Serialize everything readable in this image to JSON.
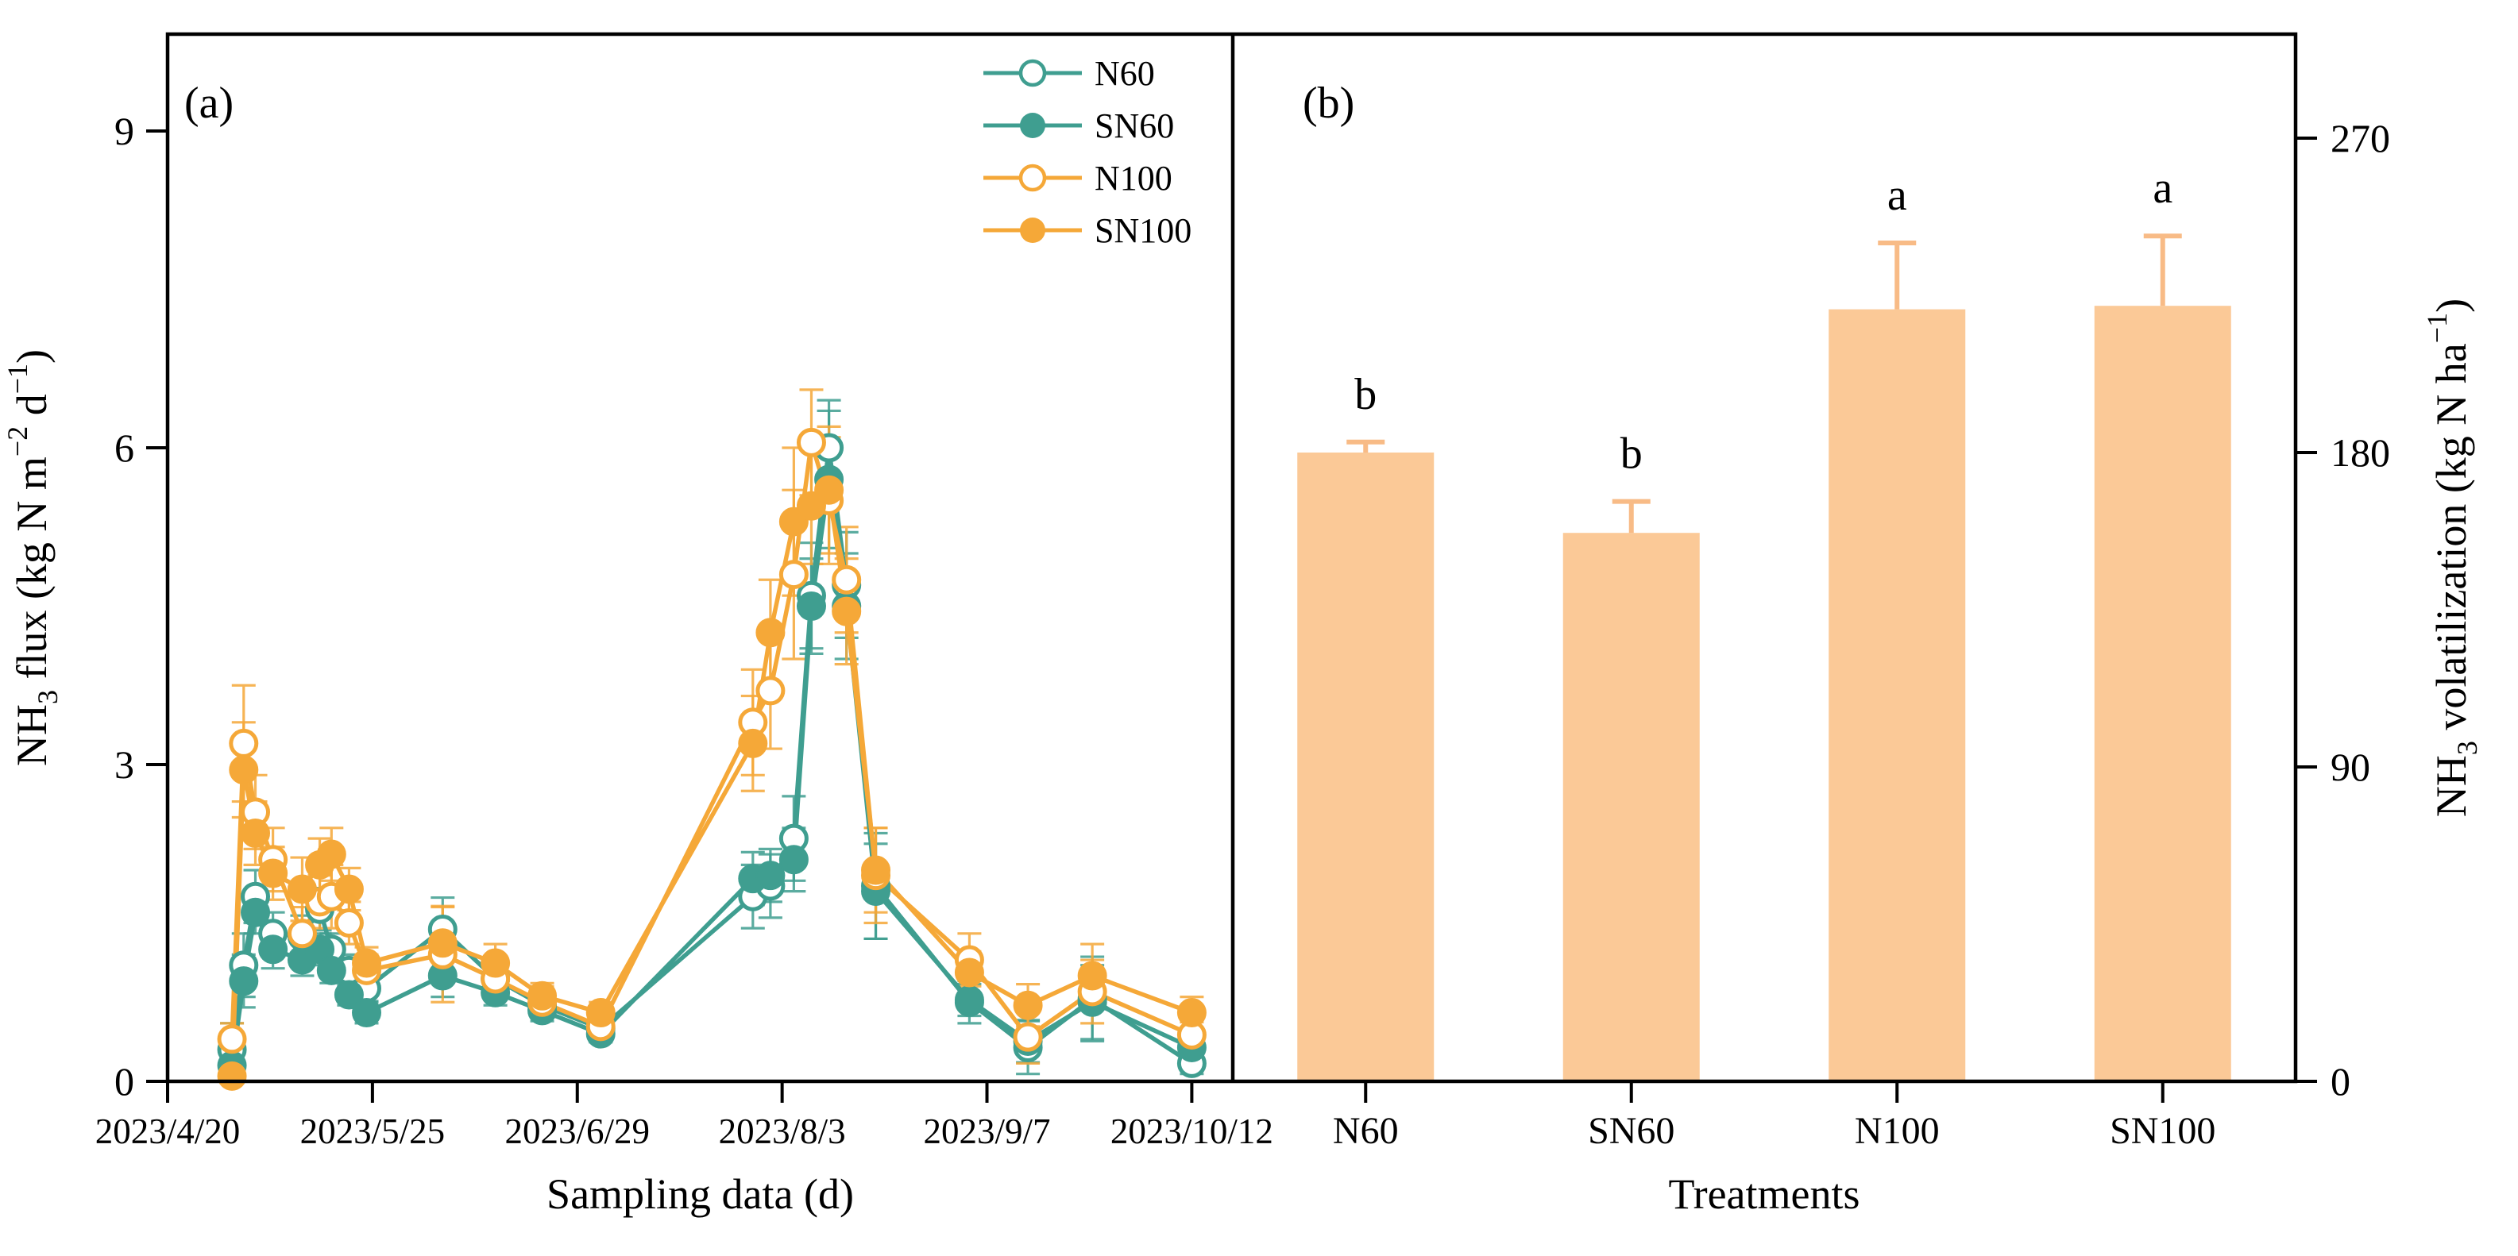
{
  "figure": {
    "background": "#ffffff",
    "colors": {
      "teal": "#3F9E90",
      "orange": "#F5A838",
      "bar_fill": "#FBC997",
      "bar_error": "#F8BB86",
      "axis": "#000000",
      "open_marker_fill": "#FFFFFF"
    },
    "panel_a_label": "(a)",
    "panel_b_label": "(b)"
  },
  "chart_data": [
    {
      "type": "line",
      "panel": "a",
      "panel_label": "(a)",
      "xlabel": "Sampling data (d)",
      "ylabel_parts": [
        [
          "t",
          "NH"
        ],
        [
          "sub",
          "3"
        ],
        [
          "t",
          " flux (kg N m"
        ],
        [
          "sup",
          "−2"
        ],
        [
          "t",
          " d"
        ],
        [
          "sup",
          "−1"
        ],
        [
          "t",
          ")"
        ]
      ],
      "x_ticks": [
        {
          "day": 0,
          "label": "2023/4/20"
        },
        {
          "day": 35,
          "label": "2023/5/25"
        },
        {
          "day": 70,
          "label": "2023/6/29"
        },
        {
          "day": 105,
          "label": "2023/8/3"
        },
        {
          "day": 140,
          "label": "2023/9/7"
        },
        {
          "day": 175,
          "label": "2023/10/12"
        }
      ],
      "x_range_days": [
        0,
        182
      ],
      "ylim": [
        0,
        9.9
      ],
      "yticks": [
        0,
        3,
        6,
        9
      ],
      "grid": false,
      "legend_position": "top-right-inside",
      "days": [
        11,
        13,
        15,
        18,
        23,
        26,
        28,
        31,
        34,
        47,
        56,
        64,
        74,
        100,
        103,
        107,
        110,
        113,
        116,
        121,
        137,
        147,
        158,
        175
      ],
      "series": [
        {
          "name": "N60",
          "color_key": "teal",
          "marker": "open",
          "values": [
            0.3,
            1.1,
            1.75,
            1.4,
            1.37,
            1.63,
            1.25,
            1.05,
            0.88,
            1.44,
            0.97,
            0.72,
            0.5,
            1.75,
            1.85,
            2.3,
            4.6,
            6.0,
            4.7,
            1.85,
            0.75,
            0.32,
            0.78,
            0.17
          ],
          "errors": [
            0.25,
            0.3,
            0.25,
            0.2,
            0.2,
            0.2,
            0.15,
            0.15,
            0.12,
            0.3,
            0.15,
            0.12,
            0.1,
            0.3,
            0.3,
            0.4,
            0.5,
            0.45,
            0.5,
            0.5,
            0.2,
            0.25,
            0.4,
            0.1
          ]
        },
        {
          "name": "SN60",
          "color_key": "teal",
          "marker": "filled",
          "values": [
            0.15,
            0.95,
            1.6,
            1.25,
            1.15,
            1.25,
            1.05,
            0.82,
            0.65,
            1.0,
            0.84,
            0.67,
            0.45,
            1.92,
            1.95,
            2.1,
            4.5,
            5.7,
            4.5,
            1.8,
            0.77,
            0.38,
            0.75,
            0.32
          ],
          "errors": [
            0.08,
            0.25,
            0.2,
            0.18,
            0.15,
            0.15,
            0.12,
            0.1,
            0.1,
            0.2,
            0.12,
            0.1,
            0.08,
            0.25,
            0.25,
            0.3,
            0.45,
            0.65,
            0.5,
            0.45,
            0.15,
            0.2,
            0.35,
            0.1
          ]
        },
        {
          "name": "N100",
          "color_key": "orange",
          "marker": "open",
          "values": [
            0.4,
            3.2,
            2.55,
            2.1,
            1.4,
            1.7,
            1.75,
            1.5,
            1.05,
            1.2,
            0.97,
            0.75,
            0.52,
            3.4,
            3.7,
            4.8,
            6.05,
            5.5,
            4.75,
            1.95,
            1.15,
            0.42,
            0.85,
            0.44
          ],
          "errors": [
            0.15,
            0.55,
            0.35,
            0.3,
            0.25,
            0.25,
            0.3,
            0.2,
            0.15,
            0.45,
            0.2,
            0.15,
            0.12,
            0.5,
            0.55,
            0.8,
            0.5,
            0.6,
            0.5,
            0.45,
            0.25,
            0.25,
            0.3,
            0.12
          ]
        },
        {
          "name": "SN100",
          "color_key": "orange",
          "marker": "filled",
          "values": [
            0.05,
            2.95,
            2.35,
            1.97,
            1.82,
            2.05,
            2.15,
            1.82,
            1.12,
            1.31,
            1.12,
            0.81,
            0.65,
            3.2,
            4.25,
            5.3,
            5.45,
            5.6,
            4.45,
            2.0,
            1.03,
            0.72,
            1.0,
            0.65
          ],
          "errors": [
            0.05,
            0.45,
            0.3,
            0.25,
            0.3,
            0.25,
            0.25,
            0.2,
            0.15,
            0.35,
            0.18,
            0.12,
            0.1,
            0.45,
            0.5,
            0.7,
            0.55,
            0.6,
            0.5,
            0.4,
            0.2,
            0.2,
            0.3,
            0.15
          ]
        }
      ],
      "legend": [
        {
          "label": "N60",
          "color_key": "teal",
          "marker": "open"
        },
        {
          "label": "SN60",
          "color_key": "teal",
          "marker": "filled"
        },
        {
          "label": "N100",
          "color_key": "orange",
          "marker": "open"
        },
        {
          "label": "SN100",
          "color_key": "orange",
          "marker": "filled"
        }
      ]
    },
    {
      "type": "bar",
      "panel": "b",
      "panel_label": "(b)",
      "xlabel": "Treatments",
      "ylabel_parts": [
        [
          "t",
          "NH"
        ],
        [
          "sub",
          "3"
        ],
        [
          "t",
          " volatilization (kg N ha"
        ],
        [
          "sup",
          "−1"
        ],
        [
          "t",
          ")"
        ]
      ],
      "categories": [
        "N60",
        "SN60",
        "N100",
        "SN100"
      ],
      "values": [
        180,
        157,
        221,
        222
      ],
      "errors": [
        3,
        9,
        19,
        20
      ],
      "sig_letters": [
        "b",
        "b",
        "a",
        "a"
      ],
      "ylim": [
        0,
        300
      ],
      "yticks": [
        0,
        90,
        180,
        270
      ],
      "grid": false
    }
  ]
}
